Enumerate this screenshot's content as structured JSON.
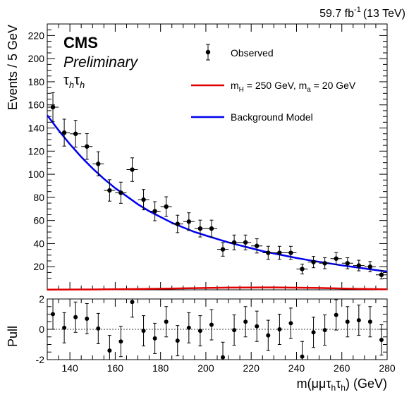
{
  "lumi": {
    "value": "59.7 fb",
    "exp": "-1",
    "energy": "(13 TeV)"
  },
  "labels": {
    "cms": "CMS",
    "preliminary": "Preliminary",
    "channel": "τ",
    "channel_sub": "h"
  },
  "legend": {
    "observed": "Observed",
    "signal": {
      "m": "m",
      "h": "H",
      "val1": " = 250 GeV, m",
      "a": "a",
      "val2": " = 20 GeV"
    },
    "background": "Background Model"
  },
  "colors": {
    "signal": "#e00000",
    "background": "#0000ee",
    "data": "#000000"
  },
  "chart_data": [
    {
      "type": "scatter",
      "title": "",
      "ylabel": "Events / 5 GeV",
      "xlim": [
        130,
        280
      ],
      "ylim": [
        0,
        230
      ],
      "yticks": [
        20,
        40,
        60,
        80,
        100,
        120,
        140,
        160,
        180,
        200,
        220
      ],
      "series": [
        {
          "name": "Observed",
          "style": "points_with_errorbars",
          "x": [
            132.5,
            137.5,
            142.5,
            147.5,
            152.5,
            157.5,
            162.5,
            167.5,
            172.5,
            177.5,
            182.5,
            187.5,
            192.5,
            197.5,
            202.5,
            207.5,
            212.5,
            217.5,
            222.5,
            227.5,
            232.5,
            237.5,
            242.5,
            247.5,
            252.5,
            257.5,
            262.5,
            267.5,
            272.5,
            277.5
          ],
          "y": [
            158,
            136,
            135,
            124,
            109,
            86,
            84,
            104,
            78,
            68,
            72,
            57,
            59,
            53,
            53,
            35,
            41,
            41,
            38,
            32,
            32,
            32,
            18,
            24,
            23,
            27,
            23,
            21,
            20,
            13
          ]
        },
        {
          "name": "Background Model",
          "style": "line",
          "x": [
            130,
            135,
            140,
            145,
            150,
            155,
            160,
            165,
            170,
            175,
            180,
            185,
            190,
            195,
            200,
            205,
            210,
            215,
            220,
            225,
            230,
            235,
            240,
            245,
            250,
            255,
            260,
            265,
            270,
            275,
            280
          ],
          "y": [
            151,
            138,
            126,
            115,
            105,
            96,
            88,
            81,
            74,
            68,
            63,
            58,
            54,
            50,
            47,
            44,
            41,
            38.5,
            36,
            33.5,
            31.5,
            29.5,
            27.5,
            25.8,
            24.2,
            22.7,
            21.2,
            19.8,
            18.5,
            17.1,
            15.8
          ]
        },
        {
          "name": "m_H = 250 GeV, m_a = 20 GeV",
          "style": "line",
          "x": [
            130,
            150,
            170,
            190,
            210,
            230,
            250,
            265,
            280
          ],
          "y": [
            0.2,
            0.3,
            0.7,
            1.3,
            1.9,
            2.1,
            1.6,
            0.9,
            0.4
          ]
        }
      ]
    },
    {
      "type": "scatter",
      "title": "",
      "xlabel": "m(μμτ",
      "xlabel_parts": {
        "base": "m(μμτ",
        "sub1": "h",
        "mid": "τ",
        "sub2": "h",
        "end": ") (GeV)"
      },
      "ylabel": "Pull",
      "xlim": [
        130,
        280
      ],
      "ylim": [
        -2,
        2
      ],
      "xticks": [
        140,
        160,
        180,
        200,
        220,
        240,
        260,
        280
      ],
      "yticks": [
        -2,
        0,
        2
      ],
      "reference_line": 0,
      "series": [
        {
          "name": "",
          "style": "points_with_errorbars",
          "x": [
            132.5,
            137.5,
            142.5,
            147.5,
            152.5,
            157.5,
            162.5,
            167.5,
            172.5,
            177.5,
            182.5,
            187.5,
            192.5,
            197.5,
            202.5,
            207.5,
            212.5,
            217.5,
            222.5,
            227.5,
            232.5,
            237.5,
            242.5,
            247.5,
            252.5,
            257.5,
            262.5,
            267.5,
            272.5,
            277.5
          ],
          "y": [
            1.0,
            0.1,
            0.8,
            0.7,
            0.05,
            -1.4,
            -0.8,
            1.8,
            -0.1,
            -0.6,
            0.5,
            -0.75,
            0.1,
            -0.1,
            0.3,
            -1.85,
            -0.05,
            0.5,
            0.2,
            -0.4,
            0.0,
            0.4,
            -1.8,
            -0.2,
            -0.05,
            0.95,
            0.5,
            0.6,
            0.5,
            -0.7
          ]
        }
      ]
    }
  ]
}
